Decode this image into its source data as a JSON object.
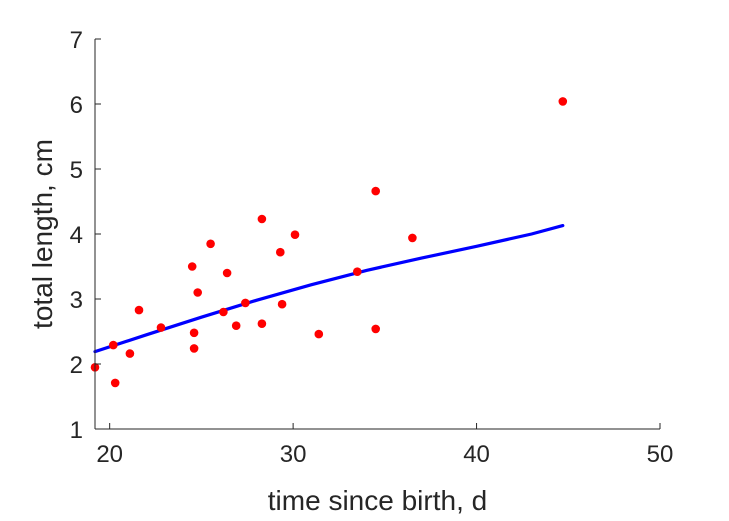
{
  "chart_data": {
    "type": "scatter",
    "title": "",
    "xlabel": "time since birth, d",
    "ylabel": "total length, cm",
    "xlim": [
      19.2,
      50
    ],
    "ylim": [
      1,
      7
    ],
    "xticks": [
      20,
      30,
      40,
      50
    ],
    "yticks": [
      1,
      2,
      3,
      4,
      5,
      6,
      7
    ],
    "grid": false,
    "legend": "none",
    "series": [
      {
        "kind": "points",
        "color": "#ff0000",
        "points": [
          {
            "x": 19.2,
            "y": 1.95
          },
          {
            "x": 20.2,
            "y": 2.29
          },
          {
            "x": 20.3,
            "y": 1.71
          },
          {
            "x": 21.1,
            "y": 2.16
          },
          {
            "x": 21.6,
            "y": 2.83
          },
          {
            "x": 22.8,
            "y": 2.56
          },
          {
            "x": 24.5,
            "y": 3.5
          },
          {
            "x": 24.6,
            "y": 2.48
          },
          {
            "x": 24.6,
            "y": 2.24
          },
          {
            "x": 24.8,
            "y": 3.1
          },
          {
            "x": 25.5,
            "y": 3.85
          },
          {
            "x": 26.2,
            "y": 2.8
          },
          {
            "x": 26.4,
            "y": 3.4
          },
          {
            "x": 26.9,
            "y": 2.59
          },
          {
            "x": 27.4,
            "y": 2.94
          },
          {
            "x": 28.3,
            "y": 2.62
          },
          {
            "x": 28.3,
            "y": 4.23
          },
          {
            "x": 29.3,
            "y": 3.72
          },
          {
            "x": 29.4,
            "y": 2.92
          },
          {
            "x": 30.1,
            "y": 3.99
          },
          {
            "x": 31.4,
            "y": 2.46
          },
          {
            "x": 33.5,
            "y": 3.42
          },
          {
            "x": 34.5,
            "y": 4.66
          },
          {
            "x": 34.5,
            "y": 2.54
          },
          {
            "x": 36.5,
            "y": 3.94
          },
          {
            "x": 44.7,
            "y": 6.04
          }
        ]
      },
      {
        "kind": "line",
        "color": "#0000ff",
        "points": [
          {
            "x": 19.2,
            "y": 2.19
          },
          {
            "x": 22.0,
            "y": 2.45
          },
          {
            "x": 25.0,
            "y": 2.72
          },
          {
            "x": 28.0,
            "y": 2.98
          },
          {
            "x": 31.0,
            "y": 3.22
          },
          {
            "x": 34.0,
            "y": 3.44
          },
          {
            "x": 37.0,
            "y": 3.63
          },
          {
            "x": 40.0,
            "y": 3.81
          },
          {
            "x": 43.0,
            "y": 4.0
          },
          {
            "x": 44.7,
            "y": 4.13
          }
        ]
      }
    ]
  }
}
